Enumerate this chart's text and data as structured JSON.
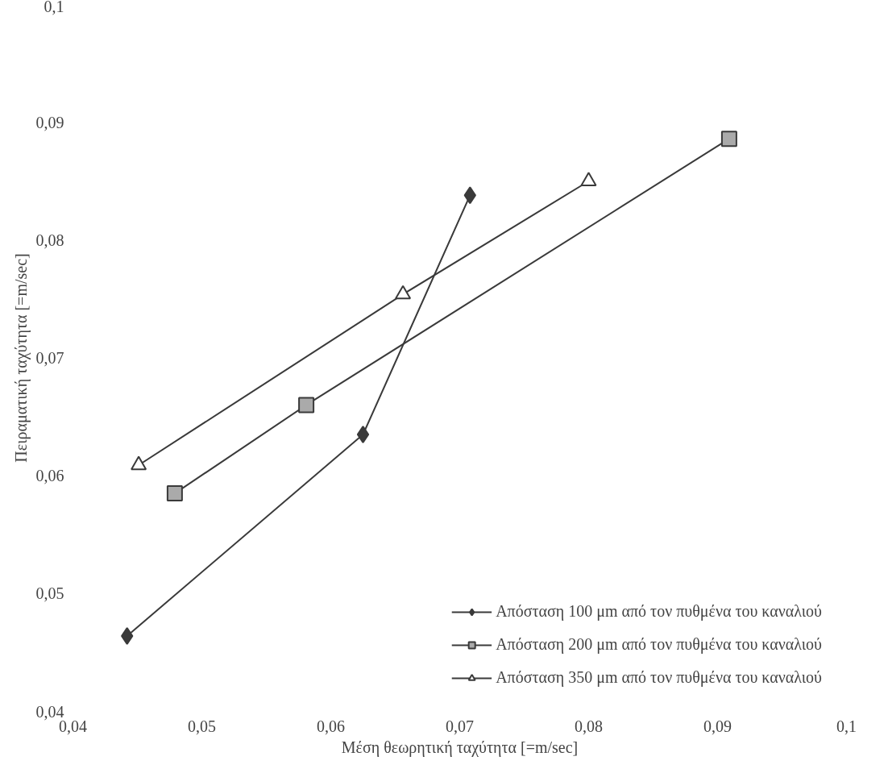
{
  "chart_data": {
    "type": "line",
    "xlabel": "Μέση θεωρητική ταχύτητα [=m/sec]",
    "ylabel": "Πειραματική ταχύτητα [=m/sec]",
    "xlim": [
      0.04,
      0.1
    ],
    "ylim": [
      0.04,
      0.1
    ],
    "xticks": [
      {
        "value": 0.04,
        "label": "0,04"
      },
      {
        "value": 0.05,
        "label": "0,05"
      },
      {
        "value": 0.06,
        "label": "0,06"
      },
      {
        "value": 0.07,
        "label": "0,07"
      },
      {
        "value": 0.08,
        "label": "0,08"
      },
      {
        "value": 0.09,
        "label": "0,09"
      },
      {
        "value": 0.1,
        "label": "0,1"
      }
    ],
    "yticks": [
      {
        "value": 0.04,
        "label": "0,04"
      },
      {
        "value": 0.05,
        "label": "0,05"
      },
      {
        "value": 0.06,
        "label": "0,06"
      },
      {
        "value": 0.07,
        "label": "0,07"
      },
      {
        "value": 0.08,
        "label": "0,08"
      },
      {
        "value": 0.09,
        "label": "0,09"
      },
      {
        "value": 0.1,
        "label": "0,1"
      }
    ],
    "grid": false,
    "legend": "bottom right",
    "line_style": "solid",
    "series": [
      {
        "name": "Απόσταση 100 μm από τον πυθμένα του καναλιού",
        "color": "#3a3a3a",
        "marker": "diamond",
        "x": [
          0.0442,
          0.0625,
          0.0708
        ],
        "values": [
          0.0464,
          0.0635,
          0.0838
        ]
      },
      {
        "name": "Απόσταση 200 μm από τον πυθμένα του καναλιού",
        "color": "#3a3a3a",
        "marker": "square",
        "x": [
          0.0479,
          0.0581,
          0.0909
        ],
        "values": [
          0.0585,
          0.066,
          0.0886
        ]
      },
      {
        "name": "Απόσταση 350 μm από τον πυθμένα του καναλιού",
        "color": "#3a3a3a",
        "marker": "triangle",
        "x": [
          0.0451,
          0.0656,
          0.08
        ],
        "values": [
          0.0609,
          0.0754,
          0.085
        ]
      }
    ]
  }
}
